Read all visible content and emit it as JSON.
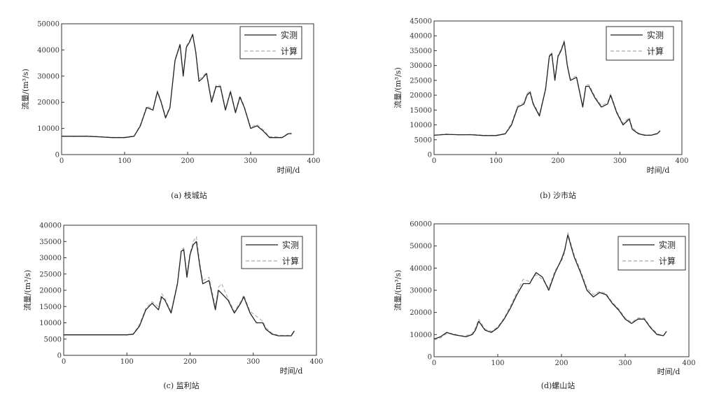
{
  "chart_data": [
    {
      "type": "line",
      "caption": "(a) 枝城站",
      "xlabel": "时间/d",
      "ylabel": "流量/(m³/s)",
      "xlim": [
        0,
        400
      ],
      "ylim": [
        0,
        50000
      ],
      "xticks": [
        0,
        100,
        200,
        300,
        400
      ],
      "yticks": [
        0,
        10000,
        20000,
        30000,
        40000,
        50000
      ],
      "legend_position": "top-right",
      "series": [
        {
          "name": "实测",
          "style": "solid",
          "color": "#222222",
          "x": [
            0,
            20,
            40,
            60,
            80,
            100,
            115,
            125,
            135,
            145,
            152,
            158,
            165,
            172,
            180,
            188,
            193,
            198,
            203,
            208,
            213,
            218,
            223,
            230,
            238,
            245,
            252,
            260,
            268,
            276,
            283,
            290,
            300,
            310,
            320,
            330,
            340,
            350,
            360,
            365
          ],
          "y": [
            7000,
            7000,
            7000,
            6800,
            6500,
            6500,
            7000,
            11000,
            18000,
            17000,
            24000,
            20000,
            14000,
            18000,
            36000,
            42000,
            30000,
            41000,
            43000,
            46000,
            39000,
            28000,
            29000,
            31000,
            20000,
            26000,
            26000,
            17000,
            24000,
            16000,
            22000,
            18000,
            10000,
            11000,
            9000,
            6500,
            6500,
            6500,
            8000,
            8000
          ]
        },
        {
          "name": "计算",
          "style": "dashed",
          "color": "#aaaaaa",
          "x": [
            0,
            20,
            40,
            60,
            80,
            100,
            115,
            125,
            135,
            145,
            152,
            158,
            165,
            172,
            180,
            188,
            193,
            198,
            203,
            208,
            213,
            218,
            223,
            230,
            238,
            245,
            252,
            260,
            268,
            276,
            283,
            290,
            300,
            310,
            320,
            330,
            340,
            350,
            360,
            365
          ],
          "y": [
            7100,
            6900,
            7100,
            6900,
            6600,
            6600,
            7100,
            11500,
            18500,
            17500,
            24500,
            20500,
            14500,
            18500,
            36500,
            42500,
            31000,
            41500,
            43500,
            45500,
            39500,
            29000,
            29500,
            31500,
            21000,
            26500,
            26500,
            17500,
            24500,
            16500,
            22500,
            18500,
            10500,
            11500,
            9500,
            6800,
            6800,
            6600,
            8200,
            8200
          ]
        }
      ]
    },
    {
      "type": "line",
      "caption": "(b) 沙市站",
      "xlabel": "时间/d",
      "ylabel": "流量/(m³/s)",
      "xlim": [
        0,
        400
      ],
      "ylim": [
        0,
        45000
      ],
      "xticks": [
        0,
        100,
        200,
        300,
        400
      ],
      "yticks": [
        0,
        5000,
        10000,
        15000,
        20000,
        25000,
        30000,
        35000,
        40000,
        45000
      ],
      "legend_position": "top-right",
      "series": [
        {
          "name": "实测",
          "style": "solid",
          "color": "#222222",
          "x": [
            0,
            20,
            40,
            60,
            80,
            100,
            115,
            125,
            135,
            145,
            150,
            155,
            160,
            170,
            180,
            186,
            190,
            195,
            200,
            205,
            210,
            215,
            220,
            230,
            240,
            245,
            250,
            260,
            270,
            280,
            285,
            295,
            305,
            315,
            320,
            330,
            340,
            350,
            360,
            365
          ],
          "y": [
            6500,
            6800,
            6700,
            6700,
            6400,
            6400,
            7000,
            10000,
            16000,
            17000,
            20000,
            21000,
            17000,
            13000,
            22000,
            33000,
            34000,
            25000,
            33000,
            35000,
            38000,
            30000,
            25000,
            26000,
            16000,
            23000,
            23000,
            19000,
            16000,
            17000,
            20000,
            14000,
            10000,
            12000,
            8500,
            7000,
            6500,
            6500,
            7000,
            8000
          ]
        },
        {
          "name": "计算",
          "style": "dashed",
          "color": "#aaaaaa",
          "x": [
            0,
            20,
            40,
            60,
            80,
            100,
            115,
            125,
            135,
            145,
            150,
            155,
            160,
            170,
            180,
            186,
            190,
            195,
            200,
            205,
            210,
            215,
            220,
            230,
            240,
            245,
            250,
            260,
            270,
            280,
            285,
            295,
            305,
            315,
            320,
            330,
            340,
            350,
            360,
            365
          ],
          "y": [
            6600,
            6900,
            6600,
            6800,
            6500,
            6500,
            7100,
            10500,
            16500,
            17500,
            20500,
            21500,
            17500,
            13500,
            22500,
            33500,
            34500,
            26000,
            33500,
            35500,
            38500,
            30500,
            25500,
            26500,
            16500,
            23500,
            23500,
            19500,
            16500,
            17500,
            20500,
            14500,
            10500,
            12500,
            9000,
            7200,
            6700,
            6600,
            7200,
            8000
          ]
        }
      ]
    },
    {
      "type": "line",
      "caption": "(c) 监利站",
      "xlabel": "时间/d",
      "ylabel": "流量/(m³/s)",
      "xlim": [
        0,
        400
      ],
      "ylim": [
        0,
        40000
      ],
      "xticks": [
        0,
        100,
        200,
        300,
        400
      ],
      "yticks": [
        0,
        5000,
        10000,
        15000,
        20000,
        25000,
        30000,
        35000,
        40000
      ],
      "legend_position": "top-right",
      "series": [
        {
          "name": "实测",
          "style": "solid",
          "color": "#222222",
          "x": [
            0,
            20,
            40,
            60,
            80,
            100,
            110,
            120,
            130,
            140,
            150,
            155,
            160,
            170,
            180,
            186,
            190,
            195,
            200,
            205,
            210,
            215,
            220,
            230,
            240,
            245,
            250,
            260,
            270,
            280,
            285,
            295,
            305,
            315,
            320,
            330,
            340,
            350,
            360,
            365
          ],
          "y": [
            6300,
            6300,
            6300,
            6300,
            6300,
            6300,
            6500,
            9000,
            14000,
            16000,
            14000,
            18000,
            17000,
            13000,
            22000,
            32000,
            32500,
            24000,
            31000,
            34000,
            35000,
            28000,
            22000,
            23000,
            14000,
            20000,
            19000,
            17000,
            13000,
            16000,
            18000,
            13000,
            10000,
            10000,
            8000,
            6500,
            6000,
            6000,
            6000,
            7500
          ]
        },
        {
          "name": "计算",
          "style": "dashed",
          "color": "#aaaaaa",
          "x": [
            0,
            20,
            40,
            60,
            80,
            100,
            110,
            120,
            130,
            140,
            150,
            155,
            160,
            170,
            180,
            186,
            190,
            195,
            200,
            205,
            210,
            215,
            220,
            230,
            240,
            245,
            250,
            260,
            270,
            280,
            285,
            295,
            305,
            315,
            320,
            330,
            340,
            350,
            360,
            365
          ],
          "y": [
            6300,
            6300,
            6300,
            6300,
            6300,
            6300,
            6600,
            9500,
            14500,
            16500,
            15000,
            19000,
            17500,
            13500,
            22500,
            32500,
            33000,
            25000,
            31500,
            35000,
            36500,
            29000,
            23000,
            24000,
            15000,
            21000,
            22000,
            17500,
            13500,
            16500,
            18500,
            13500,
            12000,
            10500,
            8500,
            6800,
            6200,
            6100,
            6200,
            7500
          ]
        }
      ]
    },
    {
      "type": "line",
      "caption": "(d)螺山站",
      "xlabel": "时间/d",
      "ylabel": "流量/(m³/s)",
      "xlim": [
        0,
        400
      ],
      "ylim": [
        0,
        60000
      ],
      "xticks": [
        0,
        100,
        200,
        300,
        400
      ],
      "yticks": [
        0,
        10000,
        20000,
        30000,
        40000,
        50000,
        60000
      ],
      "legend_position": "top-right",
      "series": [
        {
          "name": "实测",
          "style": "solid",
          "color": "#222222",
          "x": [
            0,
            10,
            20,
            30,
            40,
            50,
            60,
            65,
            70,
            80,
            90,
            100,
            110,
            120,
            130,
            140,
            150,
            160,
            170,
            180,
            190,
            200,
            205,
            210,
            215,
            220,
            230,
            240,
            250,
            260,
            270,
            280,
            290,
            300,
            310,
            320,
            330,
            340,
            350,
            360,
            365
          ],
          "y": [
            8000,
            9000,
            11000,
            10000,
            9500,
            9000,
            10000,
            12000,
            16000,
            12000,
            11000,
            13000,
            17000,
            22000,
            28000,
            33000,
            33000,
            38000,
            36000,
            30000,
            38000,
            44000,
            48000,
            55000,
            50000,
            45000,
            38000,
            30000,
            27000,
            29000,
            28000,
            24000,
            21000,
            17000,
            15000,
            17000,
            17000,
            13000,
            10000,
            9500,
            11500
          ]
        },
        {
          "name": "计算",
          "style": "dashed",
          "color": "#aaaaaa",
          "x": [
            0,
            10,
            20,
            30,
            40,
            50,
            60,
            65,
            70,
            80,
            90,
            100,
            110,
            120,
            130,
            140,
            150,
            160,
            170,
            180,
            190,
            200,
            205,
            210,
            215,
            220,
            230,
            240,
            250,
            260,
            270,
            280,
            290,
            300,
            310,
            320,
            330,
            340,
            350,
            360,
            365
          ],
          "y": [
            7500,
            8500,
            10500,
            10500,
            9500,
            9500,
            10500,
            13000,
            17000,
            12500,
            11500,
            13500,
            17500,
            23000,
            29000,
            35000,
            34000,
            37000,
            35000,
            31000,
            39000,
            43000,
            47000,
            56000,
            51000,
            46000,
            39000,
            31000,
            28000,
            29500,
            28500,
            24500,
            21500,
            17500,
            15500,
            17500,
            17500,
            13500,
            10500,
            9500,
            11500
          ]
        }
      ]
    }
  ]
}
